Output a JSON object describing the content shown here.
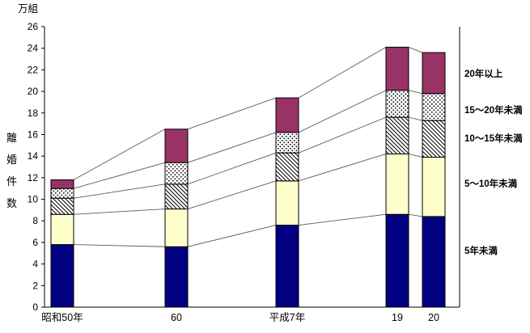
{
  "chart_data": {
    "type": "bar",
    "variant": "stacked",
    "title": "",
    "unit_label": "万組",
    "y_axis_title": "離婚件数",
    "y_axis_title_chars": [
      "離",
      "婚",
      "件",
      "数"
    ],
    "categories": [
      "昭和50年",
      "60",
      "平成7年",
      "19",
      "20"
    ],
    "series": [
      {
        "name": "5年未満",
        "pattern": "solid",
        "color": "#000080",
        "values": [
          5.8,
          5.6,
          7.6,
          8.6,
          8.4
        ]
      },
      {
        "name": "5～10年未満",
        "pattern": "solid",
        "color": "#FFFFCC",
        "values": [
          2.8,
          3.5,
          4.1,
          5.6,
          5.5
        ]
      },
      {
        "name": "10～15年未満",
        "pattern": "diagonal-hatch",
        "color": "#FFFFFF",
        "values": [
          1.5,
          2.3,
          2.6,
          3.4,
          3.4
        ]
      },
      {
        "name": "15～20年未満",
        "pattern": "dotted",
        "color": "#FFFFFF",
        "values": [
          0.9,
          2.0,
          1.9,
          2.5,
          2.5
        ]
      },
      {
        "name": "20年以上",
        "pattern": "solid",
        "color": "#993366",
        "values": [
          0.8,
          3.1,
          3.2,
          4.0,
          3.8
        ]
      }
    ],
    "totals": [
      11.8,
      16.5,
      19.4,
      24.1,
      23.6
    ],
    "ylim": [
      0,
      26
    ],
    "yticks": [
      0,
      2,
      4,
      6,
      8,
      10,
      12,
      14,
      16,
      18,
      20,
      22,
      24,
      26
    ],
    "grid": false,
    "legend_position": "right-annotations",
    "series_connector_lines": true,
    "colors": {
      "axis": "#000000",
      "connector": "#595959",
      "bar_border": "#000000",
      "navy": "#000080",
      "cream": "#FFFFCC",
      "plum": "#993366"
    }
  }
}
